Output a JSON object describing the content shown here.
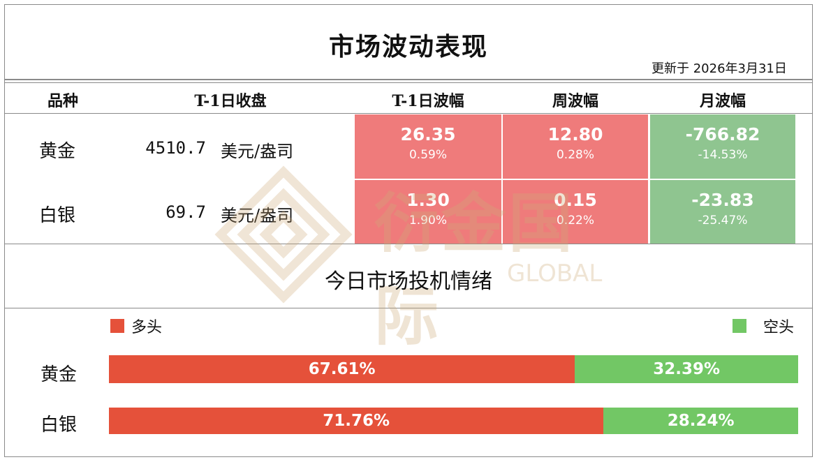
{
  "title": "市场波动表现",
  "updated": "更新于 2026年3月31日",
  "headers": [
    "品种",
    "T-1日收盘",
    "T-1日波幅",
    "周波幅",
    "月波幅"
  ],
  "rows": [
    {
      "name": "黄金",
      "close": "4510.7",
      "unit": "美元/盎司",
      "t1": {
        "value": "26.35",
        "pct": "0.59%"
      },
      "week": {
        "value": "12.80",
        "pct": "0.28%"
      },
      "month": {
        "value": "-766.82",
        "pct": "-14.53%"
      }
    },
    {
      "name": "白银",
      "close": "69.7",
      "unit": "美元/盎司",
      "t1": {
        "value": "1.30",
        "pct": "1.90%"
      },
      "week": {
        "value": "0.15",
        "pct": "0.22%"
      },
      "month": {
        "value": "-23.83",
        "pct": "-25.47%"
      }
    }
  ],
  "sentiment": {
    "title": "今日市场投机情绪",
    "long_label": "多头",
    "short_label": "空头",
    "bars": [
      {
        "name": "黄金",
        "long_fraction": 0.6761,
        "long_text": "67.61%",
        "short_text": "32.39%"
      },
      {
        "name": "白银",
        "long_fraction": 0.7176,
        "long_text": "71.76%",
        "short_text": "28.24%"
      }
    ]
  },
  "watermark": {
    "cn": "衍金国际",
    "en": "GLOBAL"
  },
  "colors": {
    "up": "#ef7b7b",
    "down": "#8fc590",
    "long": "#e5513a",
    "short": "#72c765",
    "border": "#8a8a8a"
  }
}
